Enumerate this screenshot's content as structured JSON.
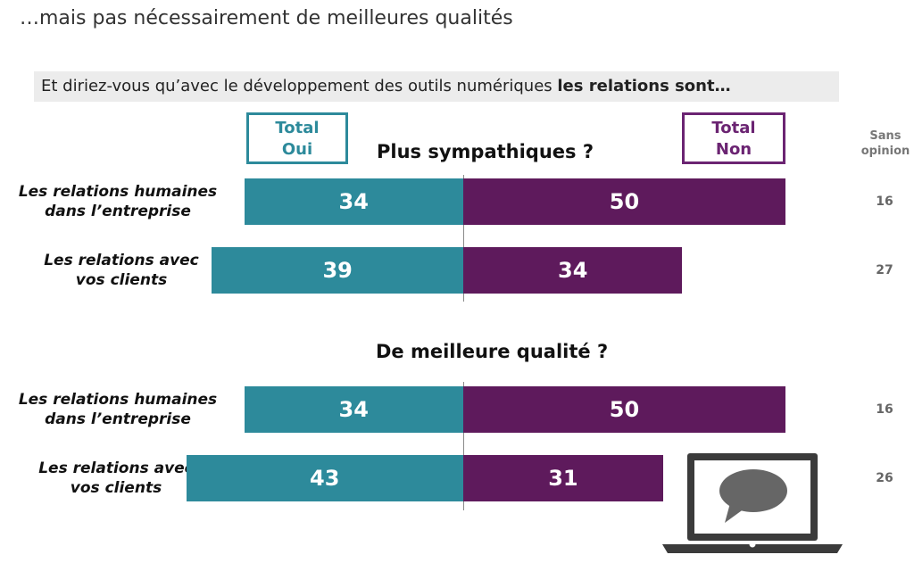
{
  "page": {
    "title": "…mais pas nécessairement de meilleures qualités",
    "question_prefix": "Et diriez-vous qu’avec le développement des outils numériques ",
    "question_bold": "les relations sont…"
  },
  "legend": {
    "oui_line1": "Total",
    "oui_line2": "Oui",
    "non_line1": "Total",
    "non_line2": "Non",
    "sans_line1": "Sans",
    "sans_line2": "opinion"
  },
  "colors": {
    "oui": "#2d8a9b",
    "non": "#5e1a5c"
  },
  "icons": [
    "laptop-icon",
    "speech-bubble-icon"
  ],
  "chart_data": [
    {
      "type": "bar",
      "title": "Plus sympathiques ?",
      "categories": [
        "Les relations humaines dans l’entreprise",
        "Les relations avec vos clients"
      ],
      "category_lines": [
        [
          "Les relations humaines",
          "dans l’entreprise"
        ],
        [
          "Les relations avec",
          "vos clients"
        ]
      ],
      "series": [
        {
          "name": "Total Oui",
          "values": [
            34,
            39
          ]
        },
        {
          "name": "Total Non",
          "values": [
            50,
            34
          ]
        },
        {
          "name": "Sans opinion",
          "values": [
            16,
            27
          ]
        }
      ]
    },
    {
      "type": "bar",
      "title": "De meilleure qualité ?",
      "categories": [
        "Les relations humaines dans l’entreprise",
        "Les relations avec vos clients"
      ],
      "category_lines": [
        [
          "Les relations humaines",
          "dans l’entreprise"
        ],
        [
          "Les relations avec",
          "vos clients"
        ]
      ],
      "series": [
        {
          "name": "Total Oui",
          "values": [
            34,
            43
          ]
        },
        {
          "name": "Total Non",
          "values": [
            50,
            31
          ]
        },
        {
          "name": "Sans opinion",
          "values": [
            16,
            26
          ]
        }
      ]
    }
  ]
}
